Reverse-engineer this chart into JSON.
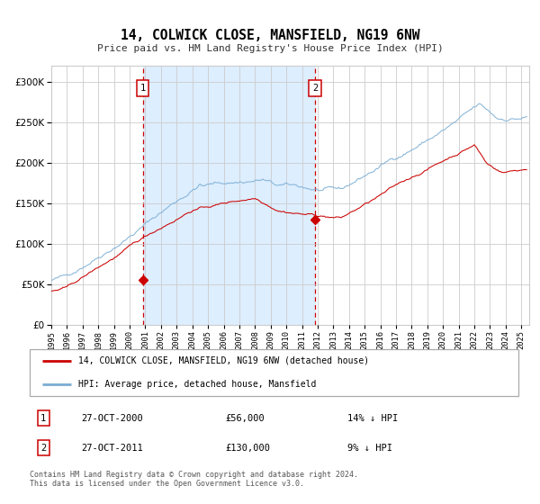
{
  "title": "14, COLWICK CLOSE, MANSFIELD, NG19 6NW",
  "subtitle": "Price paid vs. HM Land Registry's House Price Index (HPI)",
  "legend_entry1": "14, COLWICK CLOSE, MANSFIELD, NG19 6NW (detached house)",
  "legend_entry2": "HPI: Average price, detached house, Mansfield",
  "annotation1_date": "27-OCT-2000",
  "annotation1_price": 56000,
  "annotation1_hpi": "14% ↓ HPI",
  "annotation2_date": "27-OCT-2011",
  "annotation2_price": 130000,
  "annotation2_hpi": "9% ↓ HPI",
  "footer": "Contains HM Land Registry data © Crown copyright and database right 2024.\nThis data is licensed under the Open Government Licence v3.0.",
  "ylim": [
    0,
    320000
  ],
  "yticks": [
    0,
    50000,
    100000,
    150000,
    200000,
    250000,
    300000
  ],
  "xlim_start": 1995.0,
  "xlim_end": 2025.5,
  "red_line_color": "#cc0000",
  "blue_line_color": "#7aadd4",
  "shade_color": "#ddeeff",
  "vline_color": "#cc0000",
  "background_color": "#ffffff",
  "grid_color": "#cccccc",
  "tx1_x": 2000.833,
  "tx1_y": 56000,
  "tx2_x": 2011.833,
  "tx2_y": 130000
}
